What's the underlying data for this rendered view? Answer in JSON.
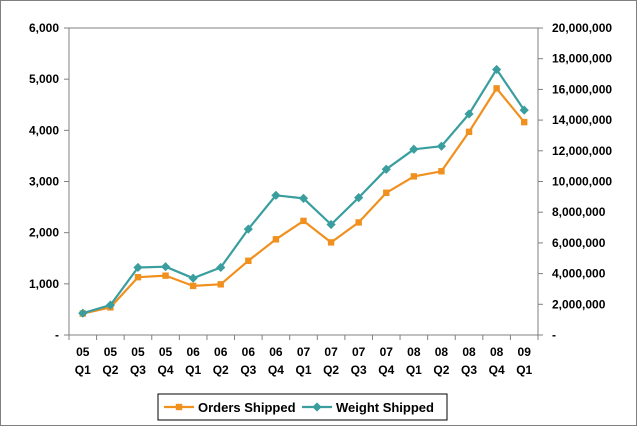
{
  "chart_data": {
    "type": "line",
    "title": "",
    "xlabel": "",
    "ylabel": "",
    "categories": [
      [
        "05",
        "Q1"
      ],
      [
        "05",
        "Q2"
      ],
      [
        "05",
        "Q3"
      ],
      [
        "05",
        "Q4"
      ],
      [
        "06",
        "Q1"
      ],
      [
        "06",
        "Q2"
      ],
      [
        "06",
        "Q3"
      ],
      [
        "06",
        "Q4"
      ],
      [
        "07",
        "Q1"
      ],
      [
        "07",
        "Q2"
      ],
      [
        "07",
        "Q3"
      ],
      [
        "07",
        "Q4"
      ],
      [
        "08",
        "Q1"
      ],
      [
        "08",
        "Q2"
      ],
      [
        "08",
        "Q3"
      ],
      [
        "08",
        "Q4"
      ],
      [
        "09",
        "Q1"
      ]
    ],
    "left_axis": {
      "min": 0,
      "max": 6000,
      "step": 1000,
      "tick_labels": [
        "-",
        "1,000",
        "2,000",
        "3,000",
        "4,000",
        "5,000",
        "6,000"
      ]
    },
    "right_axis": {
      "min": 0,
      "max": 20000000,
      "step": 2000000,
      "tick_labels": [
        "-",
        "2,000,000",
        "4,000,000",
        "6,000,000",
        "8,000,000",
        "10,000,000",
        "12,000,000",
        "14,000,000",
        "16,000,000",
        "18,000,000",
        "20,000,000"
      ]
    },
    "series": [
      {
        "name": "Orders Shipped",
        "axis": "left",
        "color": "#F0901E",
        "marker": "square",
        "values": [
          420,
          540,
          1130,
          1160,
          960,
          990,
          1450,
          1870,
          2230,
          1810,
          2200,
          2780,
          3100,
          3200,
          3970,
          4820,
          4160
        ]
      },
      {
        "name": "Weight Shipped",
        "axis": "right",
        "color": "#3A9E9E",
        "marker": "diamond",
        "values": [
          1420000,
          1950000,
          4400000,
          4450000,
          3700000,
          4400000,
          6900000,
          9100000,
          8900000,
          7200000,
          8950000,
          10800000,
          12100000,
          12300000,
          14400000,
          17300000,
          14650000
        ]
      }
    ],
    "legend_position": "bottom",
    "grid": false
  }
}
